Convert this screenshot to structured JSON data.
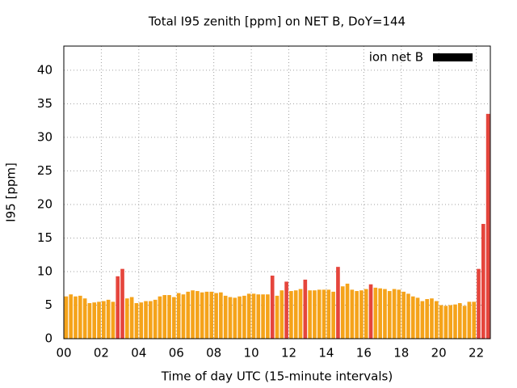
{
  "chart_data": {
    "type": "histogram",
    "title": "Total I95 zenith [ppm] on NET B, DoY=144",
    "x_label": "Time of day UTC (15-minute intervals)",
    "y_label": "I95 [ppm]",
    "bins": [
      0,
      0.25,
      0.5,
      0.75,
      1,
      1.25,
      1.5,
      1.75,
      2,
      2.25,
      2.5,
      2.75,
      3,
      3.25,
      3.5,
      3.75,
      4,
      4.25,
      4.5,
      4.75,
      5,
      5.25,
      5.5,
      5.75,
      6,
      6.25,
      6.5,
      6.75,
      7,
      7.25,
      7.5,
      7.75,
      8,
      8.25,
      8.5,
      8.75,
      9,
      9.25,
      9.5,
      9.75,
      10,
      10.25,
      10.5,
      10.75,
      11,
      11.25,
      11.5,
      11.75,
      12,
      12.25,
      12.5,
      12.75,
      13,
      13.25,
      13.5,
      13.75,
      14,
      14.25,
      14.5,
      14.75,
      15,
      15.25,
      15.5,
      15.75,
      16,
      16.25,
      16.5,
      16.75,
      17,
      17.25,
      17.5,
      17.75,
      18,
      18.25,
      18.5,
      18.75,
      19,
      19.25,
      19.5,
      19.75,
      20,
      20.25,
      20.5,
      20.75,
      21,
      21.25,
      21.5,
      21.75,
      22,
      22.25,
      22.5,
      22.75
    ],
    "series": [
      {
        "name": "ion net B",
        "legend_color": "#000000",
        "values": [
          6.3,
          6.6,
          6.3,
          6.4,
          6.0,
          5.3,
          5.4,
          5.5,
          5.6,
          5.8,
          5.5,
          9.3,
          10.4,
          6.0,
          6.2,
          5.3,
          5.4,
          5.6,
          5.6,
          5.8,
          6.3,
          6.5,
          6.5,
          6.2,
          6.8,
          6.6,
          7.0,
          7.2,
          7.1,
          6.9,
          7.0,
          7.0,
          6.8,
          6.9,
          6.4,
          6.2,
          6.1,
          6.3,
          6.4,
          6.7,
          6.7,
          6.6,
          6.6,
          6.6,
          9.4,
          6.4,
          7.2,
          8.5,
          7.1,
          7.2,
          7.4,
          8.8,
          7.2,
          7.2,
          7.3,
          7.3,
          7.3,
          7.0,
          10.7,
          7.8,
          8.2,
          7.3,
          7.1,
          7.2,
          7.4,
          8.1,
          7.6,
          7.5,
          7.4,
          7.1,
          7.4,
          7.3,
          7.0,
          6.7,
          6.3,
          6.1,
          5.6,
          5.9,
          6.0,
          5.6,
          5.0,
          4.9,
          5.0,
          5.1,
          5.3,
          4.9,
          5.5,
          5.5,
          10.4,
          17.1,
          33.5
        ],
        "colors": [
          "#f5a31a",
          "#f5a31a",
          "#f5a31a",
          "#f5a31a",
          "#f5a31a",
          "#f5a31a",
          "#f5a31a",
          "#f5a31a",
          "#f5a31a",
          "#f5a31a",
          "#f5a31a",
          "#e5453c",
          "#e5453c",
          "#f5a31a",
          "#f5a31a",
          "#f5a31a",
          "#f5a31a",
          "#f5a31a",
          "#f5a31a",
          "#f5a31a",
          "#f5a31a",
          "#f5a31a",
          "#f5a31a",
          "#f5a31a",
          "#f5a31a",
          "#f5a31a",
          "#f5a31a",
          "#f5a31a",
          "#f5a31a",
          "#f5a31a",
          "#f5a31a",
          "#f5a31a",
          "#f5a31a",
          "#f5a31a",
          "#f5a31a",
          "#f5a31a",
          "#f5a31a",
          "#f5a31a",
          "#f5a31a",
          "#f5a31a",
          "#f5a31a",
          "#f5a31a",
          "#f5a31a",
          "#f5a31a",
          "#e5453c",
          "#f5a31a",
          "#f5a31a",
          "#e5453c",
          "#f5a31a",
          "#f5a31a",
          "#f5a31a",
          "#e5453c",
          "#f5a31a",
          "#f5a31a",
          "#f5a31a",
          "#f5a31a",
          "#f5a31a",
          "#f5a31a",
          "#e5453c",
          "#f5a31a",
          "#f5a31a",
          "#f5a31a",
          "#f5a31a",
          "#f5a31a",
          "#f5a31a",
          "#e5453c",
          "#f5a31a",
          "#f5a31a",
          "#f5a31a",
          "#f5a31a",
          "#f5a31a",
          "#f5a31a",
          "#f5a31a",
          "#f5a31a",
          "#f5a31a",
          "#f5a31a",
          "#f5a31a",
          "#f5a31a",
          "#f5a31a",
          "#f5a31a",
          "#f5a31a",
          "#f5a31a",
          "#f5a31a",
          "#f5a31a",
          "#f5a31a",
          "#f5a31a",
          "#f5a31a",
          "#f5a31a",
          "#e5453c",
          "#e5453c",
          "#e5453c"
        ]
      }
    ],
    "xlim": [
      0,
      22.75
    ],
    "xticks": [
      {
        "value": 0,
        "label": "00"
      },
      {
        "value": 2,
        "label": "02"
      },
      {
        "value": 4,
        "label": "04"
      },
      {
        "value": 6,
        "label": "06"
      },
      {
        "value": 8,
        "label": "08"
      },
      10,
      12,
      14,
      16,
      18,
      20,
      22
    ],
    "ylim": [
      0,
      43.6
    ],
    "yticks": [
      0,
      5,
      10,
      15,
      20,
      25,
      30,
      35,
      40
    ],
    "grid": true,
    "legend": "top right"
  }
}
